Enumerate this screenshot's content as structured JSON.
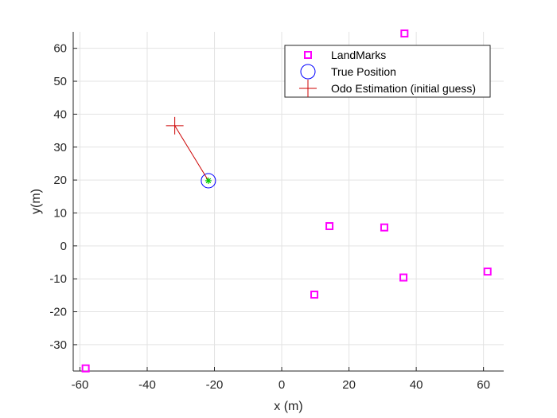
{
  "chart_data": {
    "type": "scatter",
    "title": "",
    "xlabel": "x (m)",
    "ylabel": "y(m)",
    "xlim": [
      -62,
      66
    ],
    "ylim": [
      -38,
      65
    ],
    "xticks": [
      -60,
      -40,
      -20,
      0,
      20,
      40,
      60
    ],
    "yticks": [
      -30,
      -20,
      -10,
      0,
      10,
      20,
      30,
      40,
      50,
      60
    ],
    "xtick_labels": [
      "-60",
      "-40",
      "-20",
      "0",
      "20",
      "40",
      "60"
    ],
    "ytick_labels": [
      "-30",
      "-20",
      "-10",
      "0",
      "10",
      "20",
      "30",
      "40",
      "50",
      "60"
    ],
    "grid": true,
    "legend_position": "top-right",
    "series": [
      {
        "name": "LandMarks",
        "marker": "square",
        "color": "#ff00ff",
        "points": [
          {
            "x": 36.5,
            "y": 64.5
          },
          {
            "x": 14.2,
            "y": 6.0
          },
          {
            "x": 30.5,
            "y": 5.6
          },
          {
            "x": 36.2,
            "y": -9.6
          },
          {
            "x": 61.2,
            "y": -7.8
          },
          {
            "x": 9.7,
            "y": -14.8
          },
          {
            "x": -58.3,
            "y": -37.2
          }
        ]
      },
      {
        "name": "True Position",
        "marker": "circle",
        "color": "#0000ff",
        "points": [
          {
            "x": -21.8,
            "y": 19.8
          }
        ]
      },
      {
        "name": "Odo Estimation (initial guess)",
        "marker": "plus",
        "color": "#cc0000",
        "points": [
          {
            "x": -31.8,
            "y": 36.5
          }
        ]
      }
    ],
    "annotations": [
      {
        "type": "line",
        "color": "#cc0000",
        "from": {
          "x": -31.8,
          "y": 36.5
        },
        "to": {
          "x": -21.8,
          "y": 19.8
        }
      },
      {
        "type": "star",
        "color": "#00cc00",
        "at": {
          "x": -21.8,
          "y": 19.8
        }
      }
    ]
  }
}
